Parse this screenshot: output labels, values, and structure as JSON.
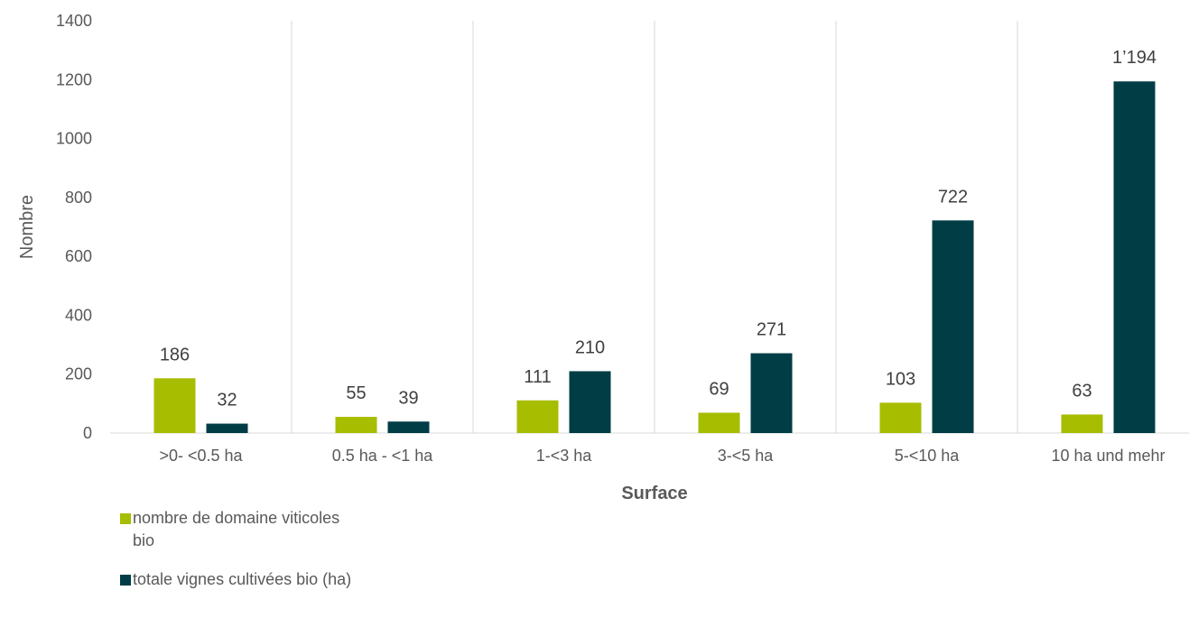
{
  "chart_data": {
    "type": "bar",
    "xlabel": "Surface",
    "ylabel": "Nombre",
    "ylim": [
      0,
      1400
    ],
    "yticks": [
      0,
      200,
      400,
      600,
      800,
      1000,
      1200,
      1400
    ],
    "ytick_labels": [
      "0",
      "200",
      "400",
      "600",
      "800",
      "1000",
      "1200",
      "1400"
    ],
    "categories": [
      ">0- <0.5 ha",
      "0.5 ha - <1 ha",
      "1-<3 ha",
      "3-<5 ha",
      "5-<10 ha",
      "10 ha und mehr"
    ],
    "series": [
      {
        "name": "nombre de domaine viticoles bio",
        "color": "#a6bd00",
        "values": [
          186,
          55,
          111,
          69,
          103,
          63
        ],
        "labels": [
          "186",
          "55",
          "111",
          "69",
          "103",
          "63"
        ]
      },
      {
        "name": "totale vignes cultivées bio (ha)",
        "color": "#003d45",
        "values": [
          32,
          39,
          210,
          271,
          722,
          1194
        ],
        "labels": [
          "32",
          "39",
          "210",
          "271",
          "722",
          "1’194"
        ]
      }
    ],
    "grid": "vertical category separators",
    "legend_position": "bottom-left"
  }
}
